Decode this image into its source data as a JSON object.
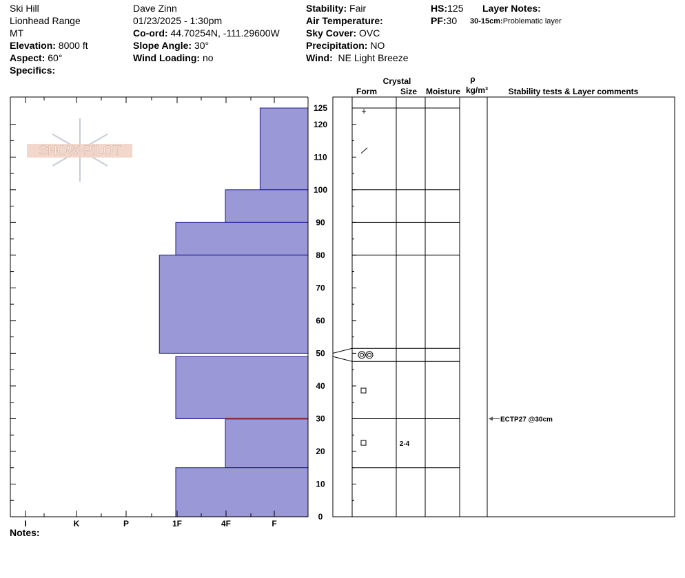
{
  "header": {
    "col1": {
      "location": "Ski Hill",
      "range": "Lionhead Range",
      "state": "MT",
      "elevation_label": "Elevation:",
      "elevation_value": "8000 ft",
      "aspect_label": "Aspect:",
      "aspect_value": "60°",
      "specifics_label": "Specifics:"
    },
    "col2": {
      "observer": "Dave Zinn",
      "datetime": "01/23/2025 - 1:30pm",
      "coord_label": "Co-ord:",
      "coord_value": "44.70254N, -111.29600W",
      "slope_label": "Slope Angle:",
      "slope_value": "30°",
      "wind_loading_label": "Wind Loading:",
      "wind_loading_value": "no"
    },
    "col3": {
      "stability_label": "Stability:",
      "stability_value": "Fair",
      "air_temp_label": "Air Temperature:",
      "sky_label": "Sky Cover:",
      "sky_value": "OVC",
      "precip_label": "Precipitation:",
      "precip_value": "NO",
      "wind_label": "Wind:",
      "wind_value": "NE Light Breeze"
    },
    "col4": {
      "hs_label": "HS:",
      "hs_value": "125",
      "pf_label": "PF:",
      "pf_value": "30",
      "layer_notes_label": "Layer Notes:",
      "layer_note_range": "30-15cm:",
      "layer_note_text": "Problematic layer"
    }
  },
  "logo_text": "SNOW PILOT",
  "table_headers": {
    "crystal": "Crystal",
    "form": "Form",
    "size": "Size",
    "moisture": "Moisture",
    "rho": "ρ",
    "density_unit": "kg/m³",
    "comments": "Stability tests & Layer comments"
  },
  "notes_label": "Notes:",
  "chart_data": {
    "type": "bar",
    "orientation": "horizontal",
    "description_of_axes": "y = snow height (cm), x = hand hardness",
    "y_range": [
      0,
      125
    ],
    "y_ticks": [
      0,
      10,
      20,
      30,
      40,
      50,
      60,
      70,
      80,
      90,
      100,
      110,
      120,
      125
    ],
    "x_categories": [
      "I",
      "K",
      "P",
      "1F",
      "4F",
      "F"
    ],
    "hardness_scale_index": {
      "F": 0,
      "4F": 1,
      "1F": 2,
      "P": 3,
      "K": 4,
      "I": 5
    },
    "layers": [
      {
        "top": 125,
        "bottom": 100,
        "hardness": "F",
        "hardness_value": 0.3,
        "form": "+",
        "size": ""
      },
      {
        "top": 100,
        "bottom": 90,
        "hardness": "4F",
        "hardness_value": 1.0,
        "form": "",
        "size": ""
      },
      {
        "top": 90,
        "bottom": 80,
        "hardness": "1F",
        "hardness_value": 2.0,
        "form": "",
        "size": ""
      },
      {
        "top": 80,
        "bottom": 50,
        "hardness": "1F+",
        "hardness_value": 2.33,
        "form": "",
        "size": ""
      },
      {
        "top": 49,
        "bottom": 30,
        "hardness": "1F",
        "hardness_value": 2.0,
        "form": "□",
        "size": ""
      },
      {
        "top": 30,
        "bottom": 15,
        "hardness": "4F",
        "hardness_value": 1.0,
        "form": "□",
        "size": "2-4"
      },
      {
        "top": 15,
        "bottom": 0,
        "hardness": "1F",
        "hardness_value": 2.0,
        "form": "",
        "size": ""
      }
    ],
    "thin_layer": {
      "top": 51.5,
      "bottom": 47.5,
      "form": "◎◎"
    },
    "decomp_form_symbol": {
      "height": 112,
      "symbol": "/"
    },
    "table_lines": [
      125,
      100,
      90,
      80,
      51.5,
      47.5,
      30,
      15
    ],
    "stability_tests": [
      {
        "height": 30,
        "text": "ECTP27 @30cm"
      }
    ],
    "problem_layer_line": 30,
    "colors": {
      "fill": "#9a98d6",
      "stroke": "#1b1b8c",
      "problem_line": "#8b1a2b"
    }
  }
}
